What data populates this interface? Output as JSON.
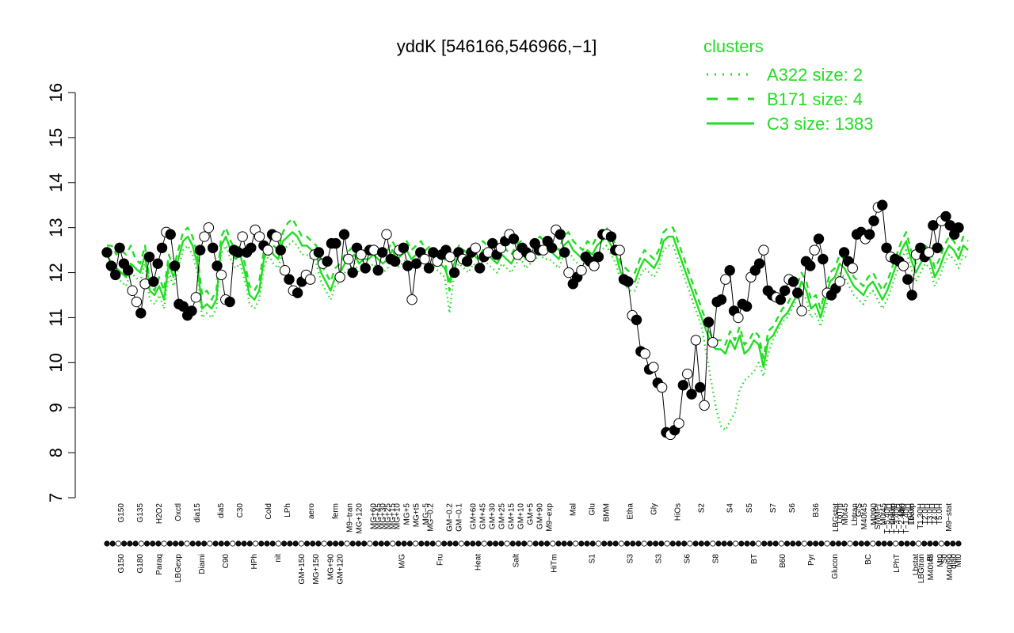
{
  "chart_data": {
    "type": "line",
    "title": "yddK [546166,546966,−1]",
    "xlabel": "",
    "ylabel": "",
    "ylim": [
      7,
      16
    ],
    "yticks": [
      7,
      8,
      9,
      10,
      11,
      12,
      13,
      14,
      15,
      16
    ],
    "grid": false,
    "legend_position": "top-right",
    "legend": {
      "title": "clusters",
      "entries": [
        {
          "label": "A322 size: 2",
          "style": "dotted"
        },
        {
          "label": "B171 size: 4",
          "style": "dashed"
        },
        {
          "label": "C3 size: 1383",
          "style": "solid"
        }
      ]
    },
    "colors": {
      "lines": "#22dd22",
      "points": "#000000",
      "open_points": "#ffffff",
      "axis": "#000000"
    },
    "x_count": 180,
    "tick_labels_upper": [
      {
        "i": 3,
        "t": "G150"
      },
      {
        "i": 7,
        "t": "G135"
      },
      {
        "i": 11,
        "t": "H2O2"
      },
      {
        "i": 15,
        "t": "Oxctl"
      },
      {
        "i": 19,
        "t": "dia15"
      },
      {
        "i": 24,
        "t": "dia5"
      },
      {
        "i": 28,
        "t": "C30"
      },
      {
        "i": 34,
        "t": "Cold"
      },
      {
        "i": 38,
        "t": "LPh"
      },
      {
        "i": 43,
        "t": "aero"
      },
      {
        "i": 48,
        "t": "ferm"
      },
      {
        "i": 51,
        "t": "M9−tran"
      },
      {
        "i": 53,
        "t": "MG+120"
      },
      {
        "i": 56,
        "t": "MG+60"
      },
      {
        "i": 57,
        "t": "MG+45"
      },
      {
        "i": 58,
        "t": "MG+30"
      },
      {
        "i": 59,
        "t": "MG+25"
      },
      {
        "i": 60,
        "t": "MG+15"
      },
      {
        "i": 61,
        "t": "MG+10"
      },
      {
        "i": 63,
        "t": "MG+5"
      },
      {
        "i": 65,
        "t": "MG+t5"
      },
      {
        "i": 67,
        "t": "MG−5"
      },
      {
        "i": 68,
        "t": "MG−0.2"
      },
      {
        "i": 72,
        "t": "GM−0.2"
      },
      {
        "i": 74,
        "t": "GM−0.1"
      },
      {
        "i": 77,
        "t": "GM+60"
      },
      {
        "i": 79,
        "t": "GM+45"
      },
      {
        "i": 81,
        "t": "GM+30"
      },
      {
        "i": 83,
        "t": "GM+25"
      },
      {
        "i": 85,
        "t": "GM+15"
      },
      {
        "i": 87,
        "t": "GM+10"
      },
      {
        "i": 89,
        "t": "GM+5"
      },
      {
        "i": 91,
        "t": "GM+90"
      },
      {
        "i": 93,
        "t": "M9−exp"
      },
      {
        "i": 98,
        "t": "Mal"
      },
      {
        "i": 102,
        "t": "Glu"
      },
      {
        "i": 105,
        "t": "BMM"
      },
      {
        "i": 110,
        "t": "Etha"
      },
      {
        "i": 115,
        "t": "Gly"
      },
      {
        "i": 120,
        "t": "HiOs"
      },
      {
        "i": 125,
        "t": "S2"
      },
      {
        "i": 131,
        "t": "S4"
      },
      {
        "i": 135,
        "t": "S5"
      },
      {
        "i": 140,
        "t": "S7"
      },
      {
        "i": 144,
        "t": "S6"
      },
      {
        "i": 149,
        "t": "B36"
      },
      {
        "i": 154,
        "t": "LoTm"
      },
      {
        "i": 158,
        "t": "G/S"
      },
      {
        "i": 162,
        "t": "SMMPr"
      },
      {
        "i": 164,
        "t": "T−5.40H"
      },
      {
        "i": 165,
        "t": "T−4.40H"
      },
      {
        "i": 166,
        "t": "T−3.40H"
      },
      {
        "i": 167,
        "t": "T−2.40H"
      },
      {
        "i": 168,
        "t": "T−1.40H"
      },
      {
        "i": 169,
        "t": "T0.0H"
      },
      {
        "i": 171,
        "t": "T1.30H"
      },
      {
        "i": 172,
        "t": "T2.0H"
      },
      {
        "i": 173,
        "t": "T3.0H"
      },
      {
        "i": 174,
        "t": "T4.0H"
      },
      {
        "i": 175,
        "t": "T5.0H"
      },
      {
        "i": 177,
        "t": "M9−stat"
      }
    ],
    "tick_labels_lower": [
      {
        "i": 3,
        "t": "G150"
      },
      {
        "i": 7,
        "t": "G180"
      },
      {
        "i": 11,
        "t": "Paraq"
      },
      {
        "i": 15,
        "t": "LBGexp"
      },
      {
        "i": 20,
        "t": "Diami"
      },
      {
        "i": 25,
        "t": "C90"
      },
      {
        "i": 31,
        "t": "HPh"
      },
      {
        "i": 36,
        "t": "nit"
      },
      {
        "i": 41,
        "t": "GM+150"
      },
      {
        "i": 44,
        "t": "MG+150"
      },
      {
        "i": 47,
        "t": "MG+90"
      },
      {
        "i": 49,
        "t": "GM+120"
      },
      {
        "i": 62,
        "t": "M/G"
      },
      {
        "i": 70,
        "t": "Fru"
      },
      {
        "i": 78,
        "t": "Heat"
      },
      {
        "i": 86,
        "t": "Salt"
      },
      {
        "i": 94,
        "t": "HiTm"
      },
      {
        "i": 102,
        "t": "S1"
      },
      {
        "i": 110,
        "t": "S3"
      },
      {
        "i": 116,
        "t": "S3"
      },
      {
        "i": 122,
        "t": "S6"
      },
      {
        "i": 128,
        "t": "S8"
      },
      {
        "i": 136,
        "t": "BT"
      },
      {
        "i": 142,
        "t": "B60"
      },
      {
        "i": 148,
        "t": "Pyr"
      },
      {
        "i": 153,
        "t": "Glucon"
      },
      {
        "i": 160,
        "t": "BC"
      },
      {
        "i": 166,
        "t": "LPhT"
      },
      {
        "i": 170,
        "t": "Lbstat"
      },
      {
        "i": 173,
        "t": "BI"
      },
      {
        "i": 176,
        "t": "S0"
      },
      {
        "i": 178,
        "t": "dia0"
      },
      {
        "i": 179,
        "t": "Mt0"
      }
    ],
    "tick_labels_right": [
      {
        "t": "LBGstat"
      },
      {
        "t": "M0t45"
      },
      {
        "t": "Lbtran"
      },
      {
        "t": "M40t45"
      },
      {
        "t": "M0t90"
      },
      {
        "t": "M0t45"
      },
      {
        "t": "Lbexp"
      },
      {
        "t": "Mt0"
      },
      {
        "t": "Lbexp"
      },
      {
        "t": "LBGtran"
      },
      {
        "t": "M40t45"
      },
      {
        "t": "Mt0"
      },
      {
        "t": "M40t90"
      }
    ],
    "series": [
      {
        "name": "C3",
        "values": [
          12.4,
          12.2,
          12.1,
          12.0,
          11.9,
          12.2,
          12.1,
          12.0,
          12.4,
          11.6,
          11.5,
          11.7,
          11.4,
          12.2,
          11.9,
          12.3,
          12.7,
          12.8,
          12.6,
          12.2,
          11.2,
          11.3,
          11.2,
          11.4,
          12.6,
          12.8,
          12.5,
          12.3,
          12.4,
          12.0,
          11.5,
          11.4,
          11.6,
          12.3,
          12.6,
          12.4,
          12.3,
          12.7,
          12.8,
          12.9,
          12.8,
          12.6,
          12.6,
          12.5,
          12.4,
          12.0,
          11.8,
          11.6,
          11.9,
          12.0,
          12.2,
          12.3,
          12.4,
          12.2,
          12.3,
          12.3,
          12.4,
          12.3,
          12.2,
          12.3,
          12.5,
          12.3,
          12.4,
          12.5,
          12.3,
          12.4,
          12.5,
          12.3,
          12.4,
          12.3,
          12.2,
          12.1,
          11.8,
          12.2,
          12.4,
          12.3,
          12.2,
          12.4,
          12.3,
          12.5,
          12.4,
          12.3,
          12.2,
          12.4,
          12.3,
          12.2,
          12.4,
          12.5,
          12.3,
          12.4,
          12.5,
          12.6,
          12.5,
          12.5,
          12.4,
          12.3,
          12.6,
          12.7,
          12.5,
          12.4,
          12.3,
          12.5,
          12.4,
          12.6,
          12.7,
          12.8,
          12.6,
          12.4,
          12.0,
          11.9,
          11.8,
          11.8,
          12.1,
          12.3,
          12.2,
          12.1,
          12.3,
          12.7,
          12.8,
          12.8,
          12.5,
          12.2,
          11.9,
          11.6,
          11.3,
          11.0,
          10.7,
          10.4,
          10.3,
          10.3,
          10.2,
          10.5,
          10.3,
          10.6,
          10.2,
          10.3,
          10.5,
          10.4,
          9.9,
          10.5,
          10.6,
          10.8,
          11.0,
          11.1,
          11.3,
          11.5,
          11.8,
          11.6,
          11.2,
          11.3,
          11.0,
          11.4,
          11.8,
          11.9,
          12.2,
          12.1,
          11.9,
          11.7,
          11.6,
          11.5,
          11.7,
          11.8,
          11.6,
          11.4,
          11.6,
          11.9,
          12.2,
          12.5,
          12.7,
          12.3,
          12.0,
          12.2,
          12.4,
          12.3,
          11.9,
          12.1,
          12.4,
          12.6,
          12.5,
          12.3,
          12.6,
          12.5
        ]
      },
      {
        "name": "B171",
        "values": [
          12.6,
          12.6,
          12.4,
          12.5,
          12.4,
          12.6,
          12.3,
          12.2,
          12.6,
          11.8,
          11.6,
          11.9,
          11.6,
          12.4,
          12.1,
          12.5,
          12.9,
          13.0,
          12.8,
          12.4,
          11.5,
          11.6,
          11.4,
          11.6,
          12.8,
          13.0,
          12.7,
          12.5,
          12.6,
          12.2,
          11.7,
          11.6,
          11.8,
          12.5,
          12.8,
          12.6,
          12.5,
          12.9,
          13.1,
          13.2,
          13.0,
          12.8,
          12.8,
          12.7,
          12.6,
          12.2,
          12.0,
          11.8,
          12.1,
          12.2,
          12.4,
          12.5,
          12.6,
          12.4,
          12.5,
          12.5,
          12.6,
          12.5,
          12.4,
          12.5,
          12.7,
          12.5,
          12.6,
          12.7,
          12.5,
          12.6,
          12.7,
          12.5,
          12.6,
          12.5,
          12.4,
          12.3,
          11.6,
          12.4,
          12.6,
          12.5,
          12.4,
          12.6,
          12.5,
          12.7,
          12.6,
          12.5,
          12.4,
          12.6,
          12.5,
          12.4,
          12.6,
          12.7,
          12.5,
          12.6,
          12.7,
          12.8,
          12.7,
          12.7,
          12.6,
          12.5,
          12.8,
          12.9,
          12.7,
          12.6,
          12.5,
          12.7,
          12.6,
          12.8,
          12.9,
          13.0,
          12.8,
          12.6,
          12.2,
          12.1,
          12.0,
          12.0,
          12.3,
          12.5,
          12.4,
          12.3,
          12.5,
          12.9,
          13.0,
          13.0,
          12.7,
          12.4,
          12.1,
          11.8,
          11.5,
          11.2,
          10.9,
          10.6,
          10.5,
          10.5,
          10.4,
          10.7,
          10.5,
          10.8,
          10.4,
          10.5,
          10.7,
          10.6,
          10.1,
          10.7,
          10.8,
          11.0,
          11.2,
          11.3,
          11.5,
          11.7,
          12.0,
          11.8,
          11.4,
          11.5,
          11.2,
          11.6,
          12.0,
          12.1,
          12.4,
          12.3,
          12.1,
          11.9,
          11.8,
          11.7,
          11.9,
          12.0,
          11.8,
          11.6,
          11.8,
          12.1,
          12.4,
          12.7,
          12.9,
          12.5,
          12.2,
          12.4,
          12.6,
          12.5,
          12.1,
          12.3,
          12.6,
          12.8,
          12.7,
          12.5,
          12.8,
          12.7
        ]
      },
      {
        "name": "A322",
        "values": [
          12.2,
          12.0,
          11.9,
          11.8,
          11.7,
          12.0,
          11.9,
          11.8,
          12.2,
          11.4,
          11.3,
          11.5,
          11.2,
          12.0,
          11.7,
          12.1,
          12.5,
          12.6,
          12.4,
          12.0,
          11.0,
          11.1,
          11.0,
          11.2,
          12.4,
          12.6,
          12.3,
          12.1,
          12.2,
          11.8,
          11.3,
          11.2,
          11.4,
          12.1,
          12.4,
          12.2,
          12.1,
          12.5,
          12.6,
          12.7,
          12.6,
          12.4,
          12.4,
          12.3,
          12.2,
          11.8,
          11.6,
          11.4,
          11.7,
          11.8,
          12.0,
          12.1,
          12.2,
          12.0,
          12.1,
          12.1,
          12.2,
          12.1,
          12.0,
          12.1,
          12.3,
          12.1,
          12.2,
          12.3,
          12.1,
          12.2,
          12.3,
          12.1,
          12.2,
          12.1,
          12.0,
          11.9,
          11.1,
          12.0,
          12.2,
          12.1,
          12.0,
          12.2,
          12.1,
          12.3,
          12.2,
          12.1,
          12.0,
          12.2,
          12.1,
          12.0,
          12.2,
          12.3,
          12.1,
          12.2,
          12.3,
          12.4,
          12.3,
          12.3,
          12.2,
          12.1,
          12.4,
          12.5,
          12.3,
          12.2,
          12.1,
          12.3,
          12.2,
          12.4,
          12.5,
          12.6,
          12.4,
          12.2,
          11.8,
          11.7,
          11.6,
          11.6,
          11.9,
          12.1,
          12.0,
          11.9,
          12.1,
          12.5,
          12.6,
          12.6,
          12.3,
          12.0,
          11.7,
          11.4,
          11.1,
          10.8,
          10.2,
          9.6,
          9.0,
          8.6,
          8.5,
          8.7,
          8.9,
          9.4,
          9.6,
          9.7,
          9.8,
          10.0,
          9.7,
          10.2,
          10.5,
          10.7,
          10.9,
          11.0,
          11.2,
          11.4,
          11.6,
          11.4,
          11.0,
          11.1,
          10.8,
          11.2,
          11.6,
          11.7,
          12.0,
          11.9,
          11.7,
          11.5,
          11.4,
          11.3,
          11.5,
          11.6,
          11.4,
          11.2,
          11.4,
          11.7,
          12.0,
          12.3,
          12.5,
          12.1,
          11.8,
          12.0,
          12.2,
          12.1,
          11.7,
          11.9,
          12.2,
          12.4,
          12.3,
          12.1,
          12.4,
          12.3
        ]
      }
    ],
    "points": [
      12.45,
      12.15,
      11.95,
      12.55,
      12.2,
      12.05,
      11.6,
      11.35,
      11.1,
      11.75,
      12.35,
      11.8,
      12.2,
      12.55,
      12.9,
      12.85,
      12.15,
      11.3,
      11.25,
      11.05,
      11.15,
      11.45,
      12.5,
      12.8,
      13.0,
      12.55,
      12.15,
      11.95,
      11.4,
      11.35,
      12.5,
      12.45,
      12.8,
      12.45,
      12.55,
      12.95,
      12.8,
      12.6,
      12.5,
      12.85,
      12.8,
      12.5,
      12.05,
      11.85,
      11.6,
      11.55,
      11.8,
      11.95,
      11.85,
      12.4,
      12.45,
      12.2,
      12.25,
      12.65,
      12.65,
      11.9,
      12.85,
      12.3,
      12.0,
      12.55,
      12.4,
      12.1,
      12.5,
      12.5,
      12.05,
      12.45,
      12.85,
      12.3,
      12.25,
      12.5,
      12.55,
      12.15,
      11.4,
      12.2,
      12.45,
      12.3,
      12.1,
      12.45,
      12.25,
      12.4,
      12.5,
      12.35,
      12.0,
      12.45,
      12.3,
      12.25,
      12.45,
      12.55,
      12.1,
      12.35,
      12.45,
      12.65,
      12.4,
      12.55,
      12.7,
      12.85,
      12.75,
      12.4,
      12.55,
      12.45,
      12.35,
      12.65,
      12.5,
      12.5,
      12.7,
      12.55,
      12.95,
      12.85,
      12.45,
      12.0,
      11.75,
      11.9,
      12.05,
      12.35,
      12.25,
      12.15,
      12.35,
      12.85,
      12.85,
      12.8,
      12.5,
      12.5,
      11.85,
      11.8,
      11.05,
      10.95,
      10.25,
      10.2,
      9.85,
      9.9,
      9.55,
      9.45,
      8.45,
      8.4,
      8.5,
      8.65,
      9.5,
      9.75,
      9.3,
      10.5,
      9.45,
      9.05,
      10.9,
      10.45,
      11.35,
      11.4,
      11.85,
      12.05,
      11.15,
      11.0,
      11.3,
      11.25,
      11.9,
      12.05,
      12.2,
      12.5,
      11.6,
      11.5,
      11.45,
      11.4,
      11.6,
      11.85,
      11.8,
      11.55,
      11.15,
      12.25,
      12.15,
      12.5,
      12.75,
      12.3,
      11.55,
      11.5,
      11.65,
      11.8,
      12.45,
      12.25,
      12.1,
      12.85,
      12.9,
      12.75,
      12.85,
      13.15,
      13.45,
      13.5,
      12.55,
      12.35,
      12.3,
      12.25,
      12.15,
      11.85,
      11.5,
      12.4,
      12.55,
      12.35,
      12.45,
      13.05,
      12.55,
      13.15,
      13.25,
      13.05,
      12.85,
      13.0
    ],
    "open_point_indices": [
      6,
      7,
      9,
      14,
      21,
      23,
      24,
      27,
      28,
      32,
      35,
      36,
      38,
      40,
      42,
      44,
      47,
      48,
      49,
      51,
      55,
      57,
      60,
      63,
      66,
      69,
      72,
      75,
      78,
      81,
      84,
      87,
      90,
      93,
      95,
      97,
      100,
      103,
      106,
      109,
      112,
      115,
      118,
      121,
      124,
      127,
      129,
      131,
      133,
      135,
      137,
      139,
      141,
      143,
      146,
      149,
      152,
      155,
      158,
      161,
      164,
      167,
      170,
      173,
      176,
      179,
      182,
      185,
      188,
      191,
      194,
      197
    ]
  }
}
